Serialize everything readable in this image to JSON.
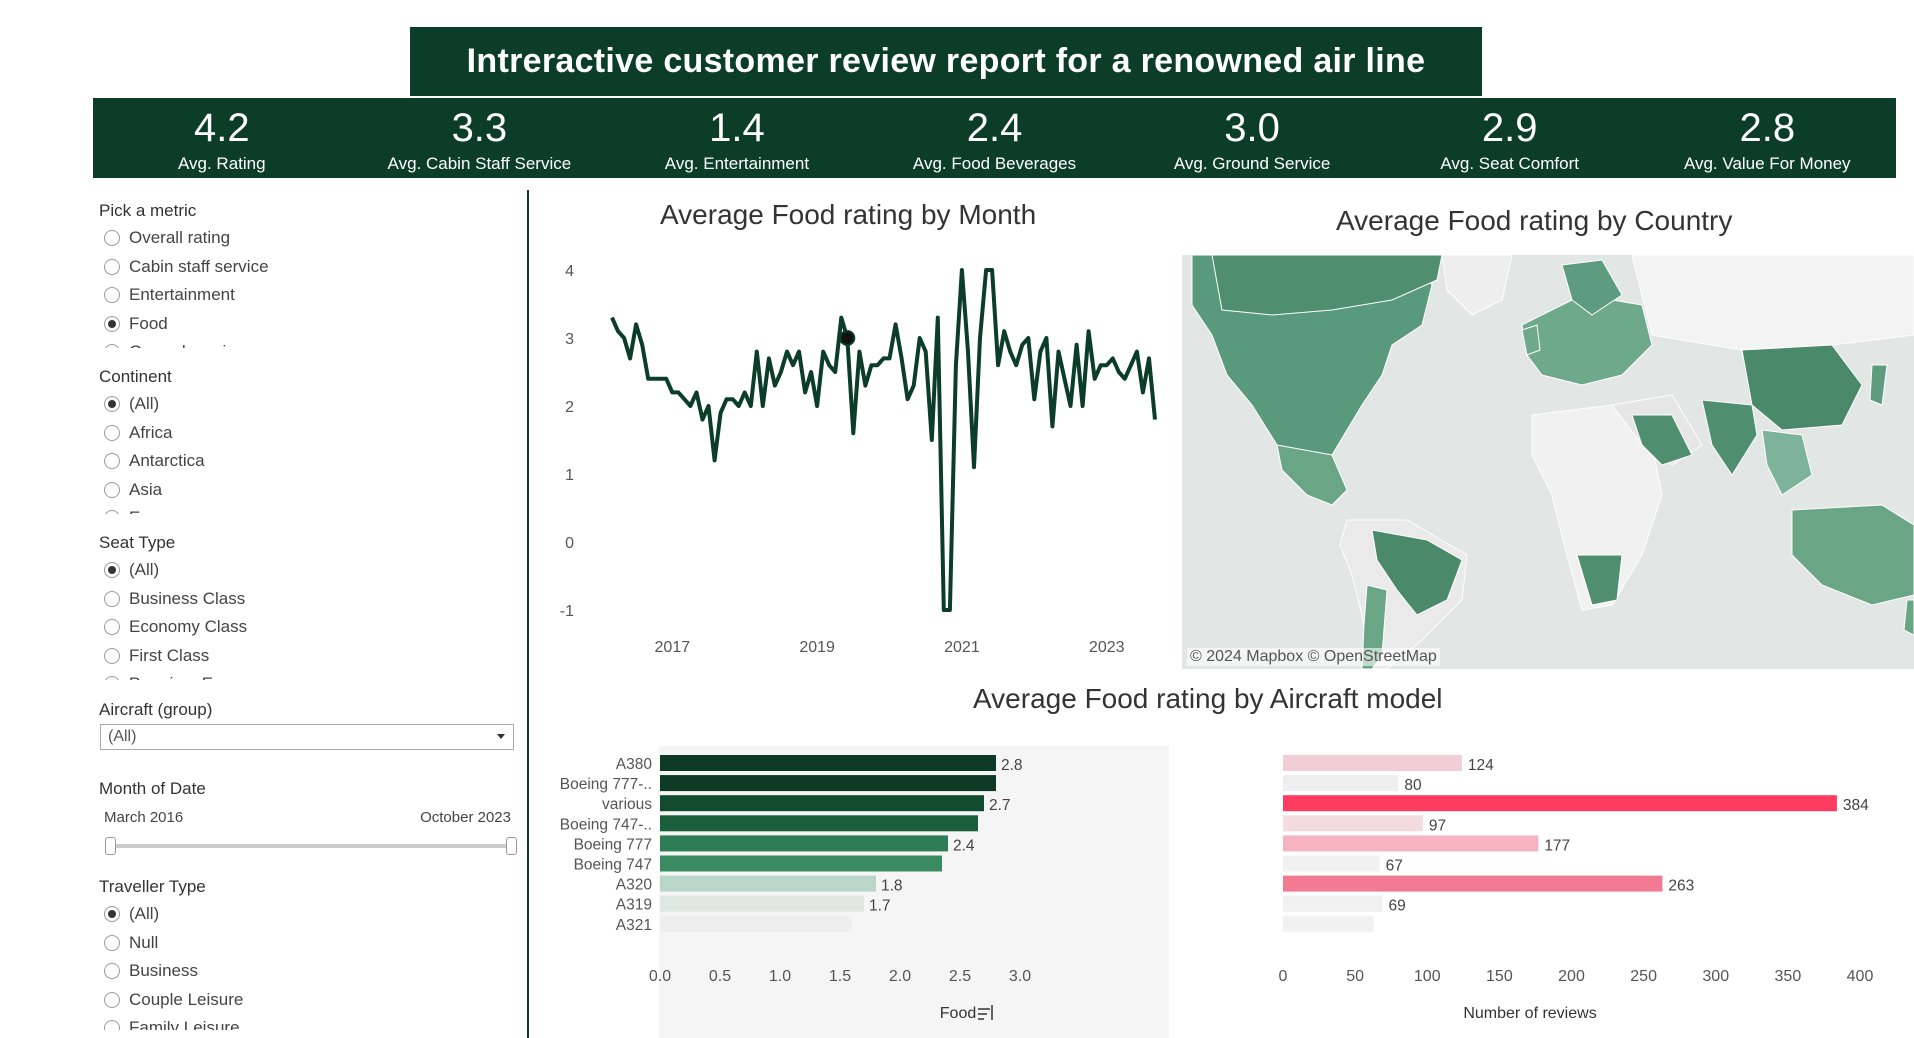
{
  "title": "Intreractive customer review report for a renowned air line",
  "kpis": [
    {
      "value": "4.2",
      "label": "Avg. Rating"
    },
    {
      "value": "3.3",
      "label": "Avg. Cabin Staff Service"
    },
    {
      "value": "1.4",
      "label": "Avg. Entertainment"
    },
    {
      "value": "2.4",
      "label": "Avg. Food Beverages"
    },
    {
      "value": "3.0",
      "label": "Avg. Ground Service"
    },
    {
      "value": "2.9",
      "label": "Avg. Seat Comfort"
    },
    {
      "value": "2.8",
      "label": "Avg. Value For Money"
    }
  ],
  "filters": {
    "metric": {
      "title": "Pick a metric",
      "options": [
        "Overall rating",
        "Cabin staff service",
        "Entertainment",
        "Food",
        "Ground service"
      ],
      "selected": 3
    },
    "continent": {
      "title": "Continent",
      "options": [
        "(All)",
        "Africa",
        "Antarctica",
        "Asia",
        "Europe"
      ],
      "selected": 0
    },
    "seat": {
      "title": "Seat Type",
      "options": [
        "(All)",
        "Business Class",
        "Economy Class",
        "First Class",
        "Premium Economy"
      ],
      "selected": 0
    },
    "aircraft": {
      "title": "Aircraft (group)",
      "value": "(All)"
    },
    "month": {
      "title": "Month of Date",
      "start": "March 2016",
      "end": "October 2023"
    },
    "traveller": {
      "title": "Traveller Type",
      "options": [
        "(All)",
        "Null",
        "Business",
        "Couple Leisure",
        "Family Leisure"
      ],
      "selected": 0
    }
  },
  "line_chart": {
    "title": "Average Food rating by Month"
  },
  "map": {
    "title": "Average Food rating by Country",
    "attribution": "© 2024 Mapbox  © OpenStreetMap"
  },
  "bar_title": "Average Food rating by Aircraft model",
  "colors": {
    "dark_green": "#0b3d29",
    "line": "#0b3d29",
    "map_water": "#e2e6e4",
    "map_land": "#f1f1f1",
    "pink_dark": "#ff3b61"
  },
  "chart_data": [
    {
      "type": "line",
      "title": "Average Food rating by Month",
      "xlabel": "",
      "ylabel": "",
      "x_ticks": [
        "2017",
        "2019",
        "2021",
        "2023"
      ],
      "y_ticks": [
        4,
        3,
        2,
        1,
        0,
        -1
      ],
      "ylim": [
        -1,
        4
      ],
      "x_start": "2016-03",
      "x_end": "2023-10",
      "values": [
        3.3,
        3.1,
        3.0,
        2.7,
        3.2,
        2.9,
        2.4,
        2.4,
        2.4,
        2.4,
        2.2,
        2.2,
        2.1,
        2.0,
        2.2,
        1.8,
        2.0,
        1.2,
        1.9,
        2.1,
        2.1,
        2.0,
        2.2,
        2.0,
        2.8,
        2.0,
        2.7,
        2.3,
        2.5,
        2.8,
        2.6,
        2.8,
        2.2,
        2.5,
        2.0,
        2.8,
        2.6,
        2.5,
        3.3,
        3.0,
        1.6,
        2.8,
        2.3,
        2.6,
        2.6,
        2.7,
        2.7,
        3.2,
        2.7,
        2.1,
        2.3,
        3.0,
        2.8,
        1.5,
        3.3,
        -1.0,
        -1.0,
        2.6,
        4.0,
        2.8,
        1.1,
        3.0,
        4.0,
        4.0,
        2.6,
        3.1,
        2.8,
        2.6,
        2.9,
        3.0,
        2.1,
        2.8,
        3.0,
        1.7,
        2.8,
        2.4,
        2.0,
        2.9,
        2.0,
        3.1,
        2.4,
        2.6,
        2.6,
        2.7,
        2.5,
        2.4,
        2.6,
        2.8,
        2.2,
        2.7,
        1.8
      ],
      "highlight_index": 39
    },
    {
      "type": "bar",
      "title": "Average Food rating by Aircraft model",
      "xlabel": "Food",
      "categories": [
        "A380",
        "Boeing 777-..",
        "various",
        "Boeing 747-..",
        "Boeing 777",
        "Boeing 747",
        "A320",
        "A319",
        "A321"
      ],
      "values": [
        2.8,
        2.8,
        2.7,
        2.65,
        2.4,
        2.35,
        1.8,
        1.7,
        1.6
      ],
      "data_labels": [
        "2.8",
        "",
        "2.7",
        "",
        "2.4",
        "",
        "1.8",
        "1.7",
        ""
      ],
      "colors": [
        "#0c3a25",
        "#0c3a25",
        "#114b30",
        "#1a5e3c",
        "#2f7d56",
        "#3a8a62",
        "#b9d6c8",
        "#dfe7e3",
        "#eeeeee"
      ],
      "x_ticks": [
        "0.0",
        "0.5",
        "1.0",
        "1.5",
        "2.0",
        "2.5",
        "3.0"
      ],
      "xlim": [
        0,
        3.0
      ]
    },
    {
      "type": "bar",
      "title": "Number of reviews",
      "xlabel": "Number of reviews",
      "categories": [
        "A380",
        "Boeing 777-..",
        "various",
        "Boeing 747-..",
        "Boeing 777",
        "Boeing 747",
        "A320",
        "A319",
        "A321"
      ],
      "values": [
        124,
        80,
        384,
        97,
        177,
        67,
        263,
        69,
        63
      ],
      "data_labels": [
        "124",
        "80",
        "384",
        "97",
        "177",
        "67",
        "263",
        "69",
        ""
      ],
      "colors": [
        "#f2cdd6",
        "#efefef",
        "#ff3b61",
        "#f4dbe1",
        "#f6b4c3",
        "#f1f1f1",
        "#f27b93",
        "#f1f1f1",
        "#f1f1f1"
      ],
      "x_ticks": [
        "0",
        "50",
        "100",
        "150",
        "200",
        "250",
        "300",
        "350",
        "400"
      ],
      "xlim": [
        0,
        400
      ]
    }
  ]
}
